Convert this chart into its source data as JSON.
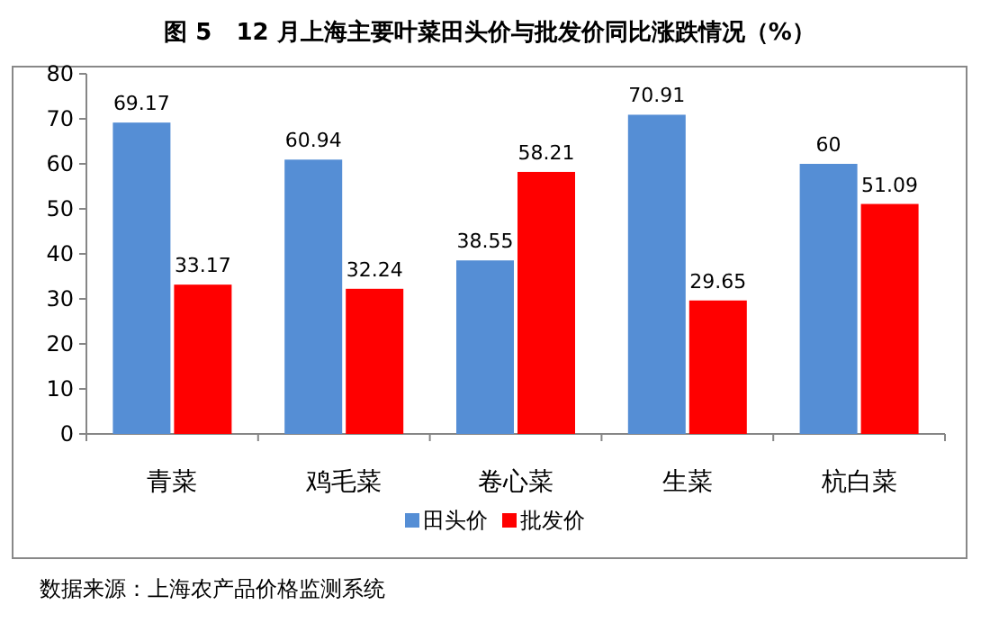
{
  "chart_data": {
    "type": "bar",
    "title": "图 5   12 月上海主要叶菜田头价与批发价同比涨跌情况（%）",
    "categories": [
      "青菜",
      "鸡毛菜",
      "卷心菜",
      "生菜",
      "杭白菜"
    ],
    "series": [
      {
        "name": "田头价",
        "color": "#558ed5",
        "values": [
          69.17,
          60.94,
          38.55,
          70.91,
          60
        ]
      },
      {
        "name": "批发价",
        "color": "#ff0000",
        "values": [
          33.17,
          32.24,
          58.21,
          29.65,
          51.09
        ]
      }
    ],
    "ylim": [
      0,
      80
    ],
    "yticks": [
      0,
      10,
      20,
      30,
      40,
      50,
      60,
      70,
      80
    ],
    "data_labels": true,
    "legend": "bottom",
    "annotations": [
      "数据来源：上海农产品价格监测系统"
    ]
  }
}
